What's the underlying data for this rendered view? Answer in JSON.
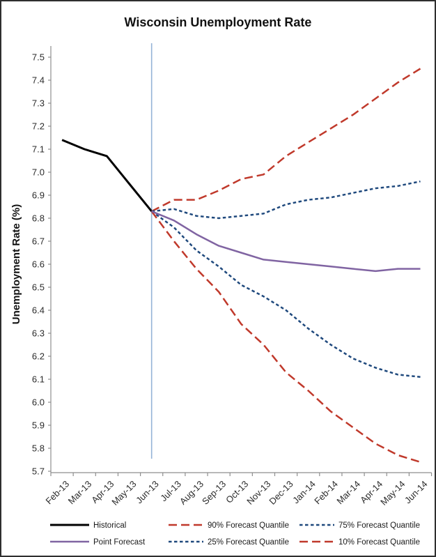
{
  "chart_data": {
    "type": "line",
    "title": "Wisconsin Unemployment Rate",
    "xlabel": "",
    "ylabel": "Unemployment Rate (%)",
    "ylim": [
      5.7,
      7.5
    ],
    "ytick_step": 0.1,
    "grid": false,
    "background": "#ffffff",
    "axis_color": "#8e8e8e",
    "categories": [
      "Feb-13",
      "Mar-13",
      "Apr-13",
      "May-13",
      "Jun-13",
      "Jul-13",
      "Aug-13",
      "Sep-13",
      "Oct-13",
      "Nov-13",
      "Dec-13",
      "Jan-14",
      "Feb-14",
      "Mar-14",
      "Apr-14",
      "May-14",
      "Jun-14"
    ],
    "forecast_marker": {
      "category": "Jun-13",
      "color": "#95B3D7"
    },
    "series": [
      {
        "name": "Historical",
        "color": "#000000",
        "style": "solid",
        "width": 3,
        "x_start_index": 0,
        "values": [
          7.14,
          7.1,
          7.07,
          6.95,
          6.83
        ]
      },
      {
        "name": "90% Forecast Quantile",
        "color": "#C0392B",
        "style": "long-dash",
        "width": 2.5,
        "x_start_index": 4,
        "values": [
          6.83,
          6.88,
          6.88,
          6.92,
          6.97,
          6.99,
          7.07,
          7.13,
          7.19,
          7.25,
          7.32,
          7.39,
          7.45
        ]
      },
      {
        "name": "75% Forecast Quantile",
        "color": "#1F497D",
        "style": "short-dash",
        "width": 2.5,
        "x_start_index": 4,
        "values": [
          6.83,
          6.84,
          6.81,
          6.8,
          6.81,
          6.82,
          6.86,
          6.88,
          6.89,
          6.91,
          6.93,
          6.94,
          6.96
        ]
      },
      {
        "name": "25% Forecast Quantile",
        "color": "#1F497D",
        "style": "short-dash",
        "width": 2.5,
        "x_start_index": 4,
        "values": [
          6.83,
          6.76,
          6.66,
          6.59,
          6.51,
          6.46,
          6.4,
          6.32,
          6.25,
          6.19,
          6.15,
          6.12,
          6.11
        ]
      },
      {
        "name": "10% Forecast Quantile",
        "color": "#C0392B",
        "style": "long-dash",
        "width": 2.5,
        "x_start_index": 4,
        "values": [
          6.83,
          6.7,
          6.58,
          6.48,
          6.34,
          6.25,
          6.13,
          6.05,
          5.96,
          5.89,
          5.82,
          5.77,
          5.74
        ]
      },
      {
        "name": "Point Forecast",
        "color": "#8064A2",
        "style": "solid",
        "width": 2.5,
        "x_start_index": 4,
        "values": [
          6.83,
          6.79,
          6.73,
          6.68,
          6.65,
          6.62,
          6.61,
          6.6,
          6.59,
          6.58,
          6.57,
          6.58,
          6.58
        ]
      }
    ],
    "legend": {
      "rows": [
        [
          "Historical",
          "90% Forecast Quantile",
          "75% Forecast Quantile"
        ],
        [
          "Point Forecast",
          "25% Forecast Quantile",
          "10% Forecast Quantile"
        ]
      ],
      "position": "bottom"
    }
  }
}
